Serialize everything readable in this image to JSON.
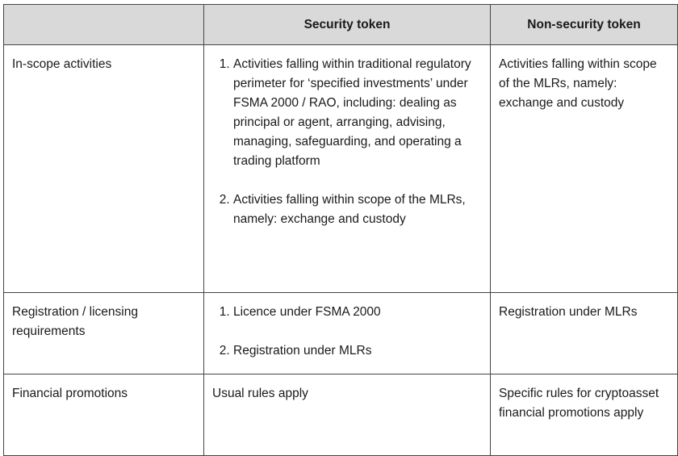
{
  "header": {
    "col1": "",
    "col2": "Security token",
    "col3": "Non-security token"
  },
  "rows": [
    {
      "label": "In-scope activities",
      "security": [
        "Activities falling within traditional regulatory perimeter for ‘specified investments’ under FSMA 2000 / RAO, including: dealing as principal or agent, arranging, advising, managing, safeguarding, and operating a trading platform",
        "Activities falling within scope of the MLRs, namely: exchange and custody"
      ],
      "non_security": "Activities falling within scope of the MLRs, namely: exchange and custody"
    },
    {
      "label": "Registration / licensing requirements",
      "security": [
        "Licence under FSMA 2000",
        "Registration under MLRs"
      ],
      "non_security": "Registration under MLRs"
    },
    {
      "label": "Financial promotions",
      "security_text": "Usual rules apply",
      "non_security": "Specific rules for cryptoasset financial promotions apply"
    }
  ]
}
